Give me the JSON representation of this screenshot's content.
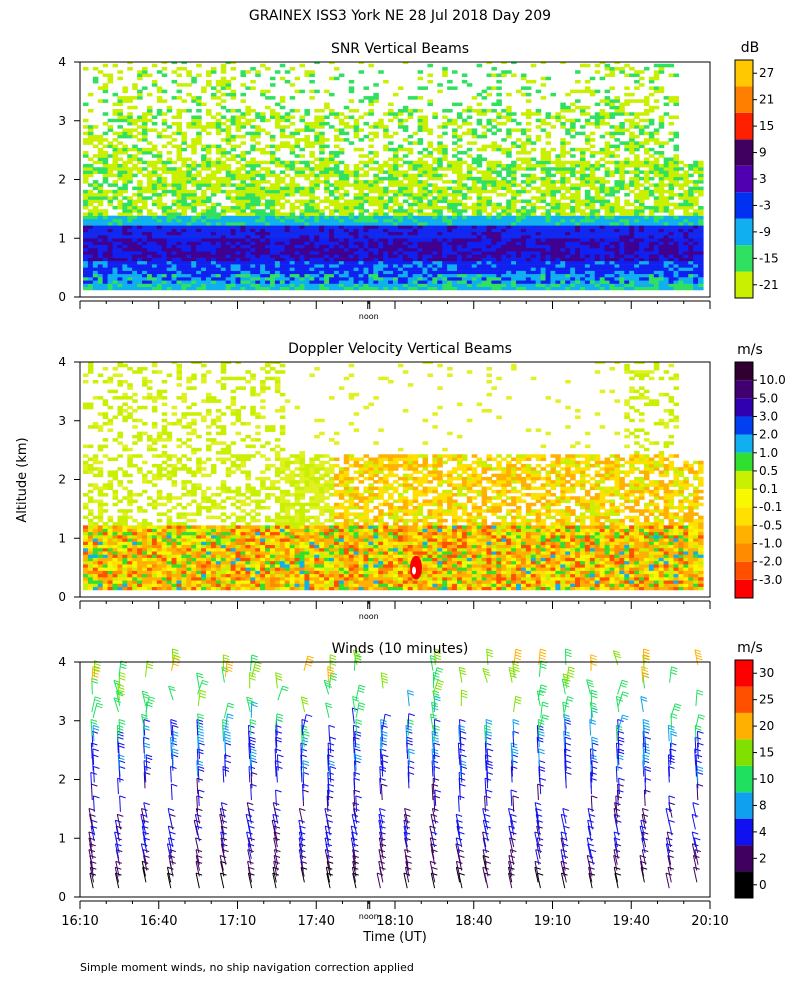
{
  "figure_title": "GRAINEX ISS3 York NE  28 Jul 2018 Day 209",
  "shared_ylabel": "Altitude (km)",
  "footnote": "Simple moment winds, no ship navigation correction applied",
  "noon_label": "noon",
  "chart_data": [
    {
      "type": "heatmap",
      "title": "SNR Vertical Beams",
      "ylabel": "Altitude (km)",
      "xlabel": "",
      "yticks": [
        "0",
        "1",
        "2",
        "3",
        "4"
      ],
      "ylim": [
        0,
        4
      ],
      "xlim_minutes": [
        0,
        240
      ],
      "colorbar": {
        "unit": "dB",
        "labels": [
          "-21",
          "-15",
          "-9",
          "-3",
          "3",
          "9",
          "15",
          "21",
          "27"
        ],
        "colors": [
          "#c8f000",
          "#30e060",
          "#10b0f0",
          "#0030f0",
          "#5000b0",
          "#400060",
          "#ff2000",
          "#ff8000",
          "#ffc800"
        ]
      },
      "layers": [
        {
          "range": [
            0.0,
            0.15
          ],
          "color": "#10b0f0"
        },
        {
          "range": [
            0.15,
            0.35
          ],
          "color": "#1020f0"
        },
        {
          "range": [
            0.35,
            0.8
          ],
          "color": "#1020f0"
        },
        {
          "range": [
            0.6,
            0.9
          ],
          "color": "#400090"
        },
        {
          "range": [
            0.9,
            1.2
          ],
          "color": "#1028f0"
        },
        {
          "range": [
            1.2,
            1.35
          ],
          "color": "#10b0f0"
        },
        {
          "range": [
            1.35,
            2.2
          ],
          "color": "#c8f000"
        },
        {
          "range": [
            2.2,
            3.0
          ],
          "color": "#c8f000"
        },
        {
          "range": [
            3.0,
            4.0
          ],
          "color": "#c8f000"
        }
      ]
    },
    {
      "type": "heatmap",
      "title": "Doppler Velocity Vertical Beams",
      "ylabel": "Altitude (km)",
      "xlabel": "",
      "yticks": [
        "0",
        "1",
        "2",
        "3",
        "4"
      ],
      "ylim": [
        0,
        4
      ],
      "xlim_minutes": [
        0,
        240
      ],
      "colorbar": {
        "unit": "m/s",
        "labels": [
          "-3.0",
          "-2.0",
          "-1.0",
          "-0.5",
          "-0.1",
          "0.1",
          "0.5",
          "1.0",
          "2.0",
          "3.0",
          "5.0",
          "10.0"
        ],
        "colors": [
          "#ff0000",
          "#ff5000",
          "#ff8c00",
          "#ffb000",
          "#ffe000",
          "#f8f800",
          "#c8f000",
          "#30e030",
          "#10b0f0",
          "#0040f0",
          "#3000b0",
          "#400070",
          "#300030"
        ]
      },
      "layers": [
        {
          "range": [
            0.0,
            1.2
          ],
          "color": "#ffb000"
        },
        {
          "range": [
            1.2,
            2.4
          ],
          "color": "#e0f020"
        },
        {
          "range": [
            2.4,
            4.0
          ],
          "color": "#c8f000"
        }
      ]
    },
    {
      "type": "barbs",
      "title": "Winds (10 minutes)",
      "ylabel": "Altitude (km)",
      "xlabel": "Time (UT)",
      "yticks": [
        "0",
        "1",
        "2",
        "3",
        "4"
      ],
      "ylim": [
        0,
        4
      ],
      "xlim_minutes": [
        0,
        240
      ],
      "xtick_labels": [
        "16:10",
        "16:40",
        "17:10",
        "17:40",
        "18:10",
        "18:40",
        "19:10",
        "19:40",
        "20:10"
      ],
      "colorbar": {
        "unit": "m/s",
        "labels": [
          "0",
          "2",
          "4",
          "8",
          "10",
          "15",
          "20",
          "25",
          "30"
        ],
        "colors": [
          "#000000",
          "#400060",
          "#1010f0",
          "#10a0f0",
          "#20e060",
          "#80e000",
          "#ffb000",
          "#ff5000",
          "#ff0000"
        ]
      },
      "profile_interval_min": 10,
      "speed_by_height_km": [
        [
          0.5,
          3
        ],
        [
          1.0,
          5
        ],
        [
          1.5,
          4
        ],
        [
          2.0,
          6
        ],
        [
          2.5,
          7
        ],
        [
          3.0,
          10
        ],
        [
          3.5,
          15
        ],
        [
          4.0,
          18
        ]
      ]
    }
  ]
}
